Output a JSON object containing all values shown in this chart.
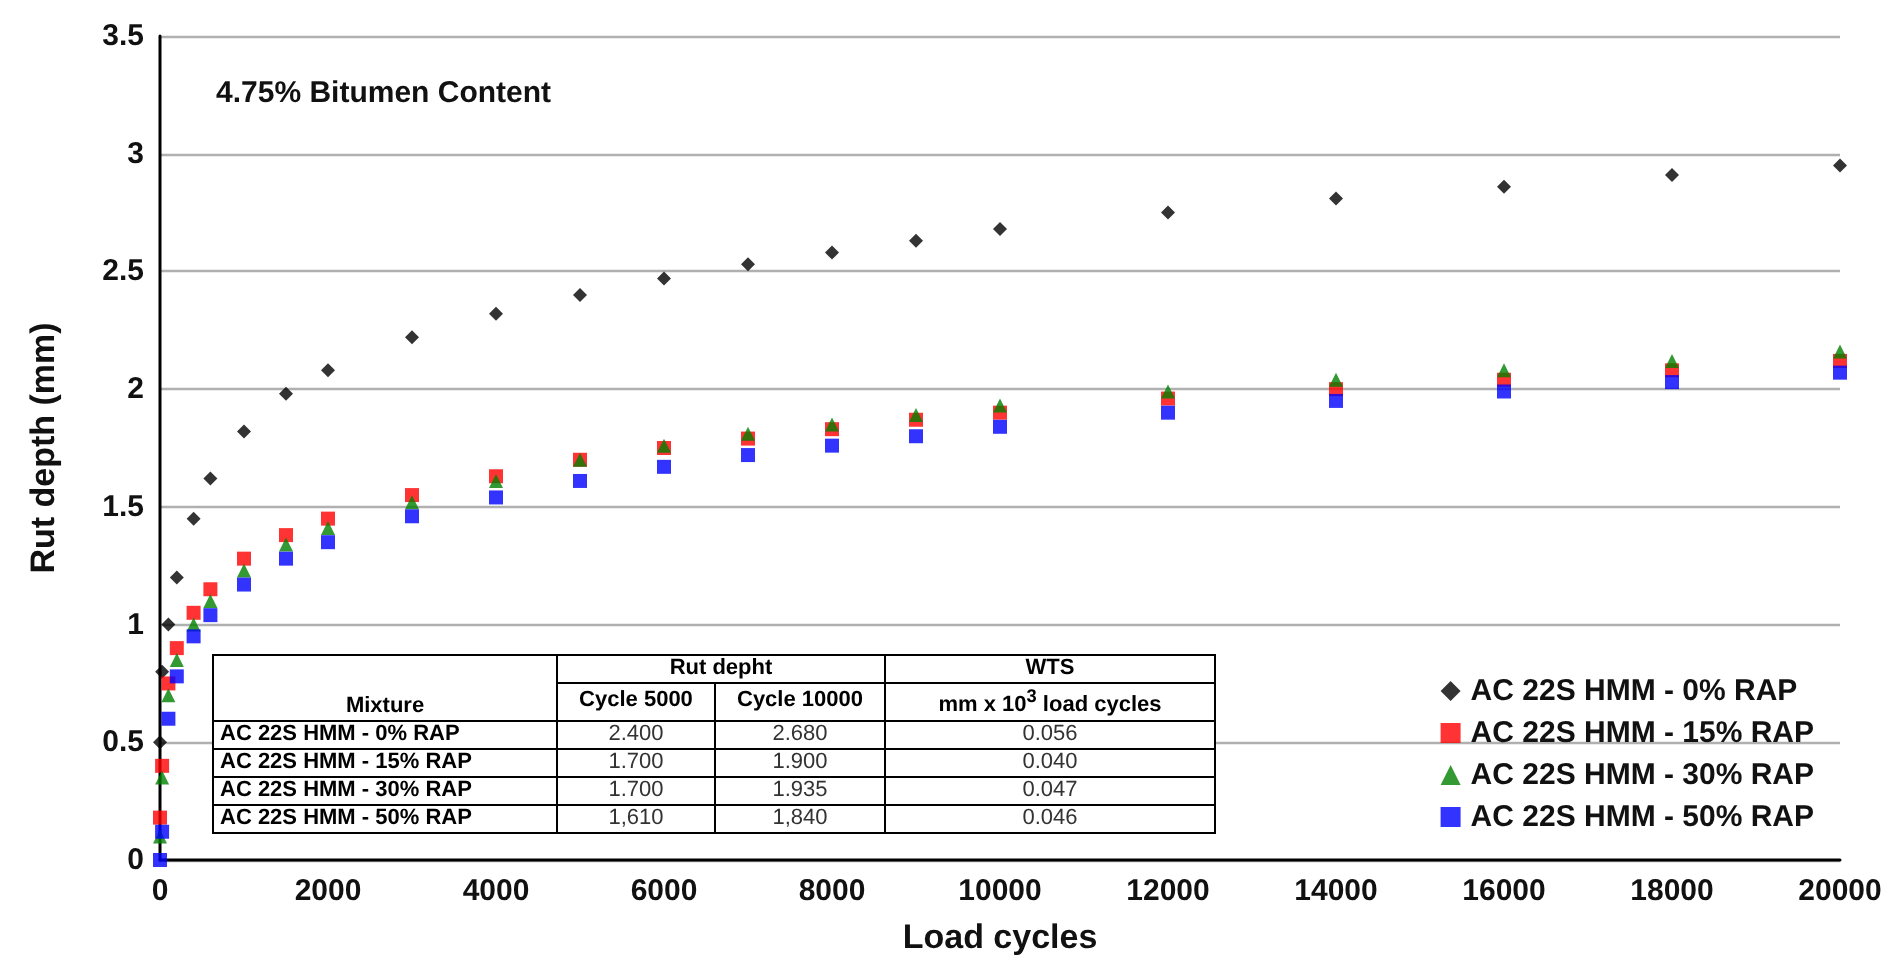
{
  "chart_data": {
    "type": "scatter",
    "xlabel": "Load cycles",
    "ylabel": "Rut depth (mm)",
    "xlim": [
      0,
      20000
    ],
    "xticks": [
      0,
      2000,
      4000,
      6000,
      8000,
      10000,
      12000,
      14000,
      16000,
      18000,
      20000
    ],
    "ylim": [
      0,
      3.5
    ],
    "yticks": [
      0,
      0.5,
      1,
      1.5,
      2,
      2.5,
      3,
      3.5
    ],
    "grid": "y",
    "legend": "bottom right",
    "x": [
      0,
      25,
      100,
      200,
      400,
      600,
      1000,
      1500,
      2000,
      3000,
      4000,
      5000,
      6000,
      7000,
      8000,
      9000,
      10000,
      12000,
      14000,
      16000,
      18000,
      20000
    ],
    "series": [
      {
        "name": "AC 22S HMM - 0% RAP",
        "color": "#000000",
        "marker": "diamond",
        "values": [
          0.5,
          0.8,
          1.0,
          1.2,
          1.45,
          1.62,
          1.82,
          1.98,
          2.08,
          2.22,
          2.32,
          2.4,
          2.47,
          2.53,
          2.58,
          2.63,
          2.68,
          2.75,
          2.81,
          2.86,
          2.91,
          2.95
        ]
      },
      {
        "name": "AC 22S HMM - 15% RAP",
        "color": "#ff0000",
        "marker": "square",
        "values": [
          0.18,
          0.4,
          0.75,
          0.9,
          1.05,
          1.15,
          1.28,
          1.38,
          1.45,
          1.55,
          1.63,
          1.7,
          1.75,
          1.79,
          1.83,
          1.87,
          1.9,
          1.96,
          2.0,
          2.04,
          2.08,
          2.12
        ]
      },
      {
        "name": "AC 22S HMM - 30% RAP",
        "color": "#008000",
        "marker": "triangle",
        "values": [
          0.1,
          0.35,
          0.7,
          0.85,
          1.0,
          1.1,
          1.23,
          1.34,
          1.41,
          1.52,
          1.61,
          1.7,
          1.76,
          1.81,
          1.85,
          1.89,
          1.93,
          1.99,
          2.04,
          2.08,
          2.12,
          2.16
        ]
      },
      {
        "name": "AC 22S HMM - 50% RAP",
        "color": "#0000ff",
        "marker": "square",
        "values": [
          0,
          0.12,
          0.6,
          0.78,
          0.95,
          1.04,
          1.17,
          1.28,
          1.35,
          1.46,
          1.54,
          1.61,
          1.67,
          1.72,
          1.76,
          1.8,
          1.84,
          1.9,
          1.95,
          1.99,
          2.03,
          2.07
        ]
      }
    ],
    "annotations": [
      "4.75% Bitumen Content",
      "Mixture",
      "Rut depht",
      "WTS",
      "Cycle 5000",
      "Cycle 10000",
      "mm x 10$^{3}$ load cycles",
      "AC 22S HMM - 0% RAP",
      "2.400",
      "2.680",
      "0.056",
      "AC 22S HMM - 15% RAP",
      "1.700",
      "1.900",
      "0.040",
      "AC 22S HMM - 30% RAP",
      "1.700",
      "1.935",
      "0.047",
      "AC 22S HMM - 50% RAP",
      "1,610",
      "1,840",
      "0.046"
    ]
  }
}
